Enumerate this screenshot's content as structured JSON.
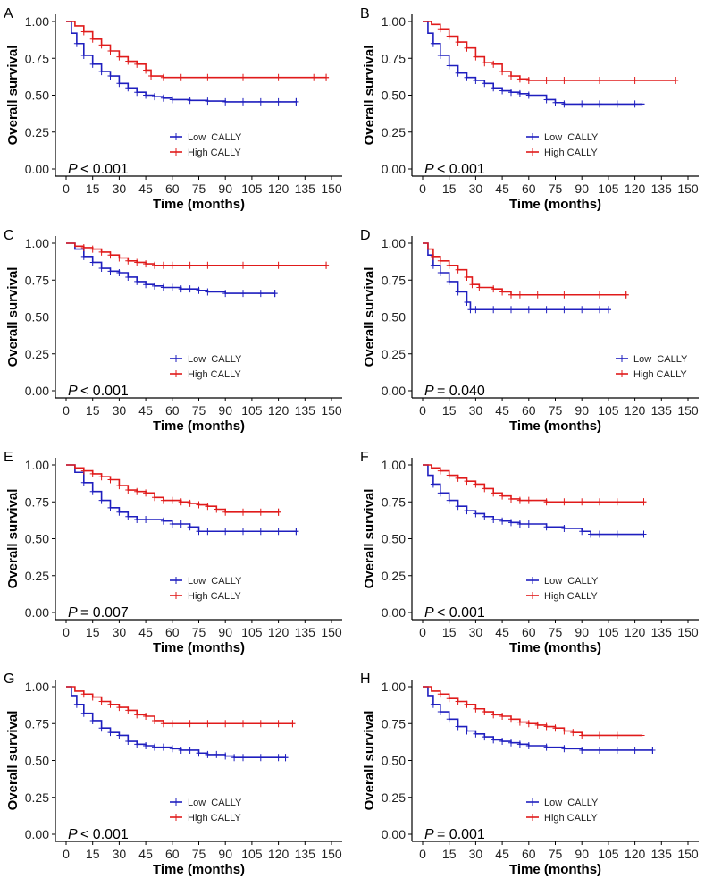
{
  "colors": {
    "low": "#1f1fbf",
    "high": "#e01b1b",
    "axis": "#000000"
  },
  "chart_data": [
    {
      "type": "line",
      "panel_label": "A",
      "xlabel": "Time (months)",
      "ylabel": "Overall survival",
      "xlim": [
        0,
        150
      ],
      "ylim": [
        0,
        1
      ],
      "xticks": [
        "0",
        "15",
        "30",
        "45",
        "60",
        "75",
        "90",
        "105",
        "120",
        "135",
        "150"
      ],
      "yticks": [
        "0.00",
        "0.25",
        "0.50",
        "0.75",
        "1.00"
      ],
      "p_label": "P",
      "p_value": "< 0.001",
      "legend_position": "bottom-center",
      "series": [
        {
          "name": "Low  CALLY",
          "color": "#1f1fbf",
          "x": [
            0,
            3,
            6,
            10,
            15,
            20,
            25,
            30,
            35,
            40,
            45,
            50,
            55,
            60,
            70,
            80,
            90,
            100,
            110,
            120,
            130
          ],
          "y": [
            1.0,
            0.92,
            0.85,
            0.77,
            0.71,
            0.66,
            0.63,
            0.58,
            0.55,
            0.52,
            0.5,
            0.49,
            0.48,
            0.47,
            0.465,
            0.46,
            0.455,
            0.455,
            0.455,
            0.455,
            0.455
          ]
        },
        {
          "name": "High CALLY",
          "color": "#e01b1b",
          "x": [
            0,
            5,
            10,
            15,
            20,
            25,
            30,
            35,
            40,
            45,
            48,
            55,
            65,
            80,
            100,
            120,
            140,
            147
          ],
          "y": [
            1.0,
            0.97,
            0.93,
            0.88,
            0.84,
            0.8,
            0.76,
            0.73,
            0.71,
            0.67,
            0.63,
            0.62,
            0.62,
            0.62,
            0.62,
            0.62,
            0.62,
            0.62
          ]
        }
      ]
    },
    {
      "type": "line",
      "panel_label": "B",
      "xlabel": "Time (months)",
      "ylabel": "Overall survival",
      "xlim": [
        0,
        150
      ],
      "ylim": [
        0,
        1
      ],
      "xticks": [
        "0",
        "15",
        "30",
        "45",
        "60",
        "75",
        "90",
        "105",
        "120",
        "135",
        "150"
      ],
      "yticks": [
        "0.00",
        "0.25",
        "0.50",
        "0.75",
        "1.00"
      ],
      "p_label": "P",
      "p_value": "< 0.001",
      "legend_position": "bottom-center",
      "series": [
        {
          "name": "Low  CALLY",
          "color": "#1f1fbf",
          "x": [
            0,
            3,
            6,
            10,
            15,
            20,
            25,
            30,
            35,
            40,
            45,
            50,
            55,
            60,
            70,
            75,
            80,
            90,
            100,
            110,
            120,
            124
          ],
          "y": [
            1.0,
            0.92,
            0.85,
            0.77,
            0.7,
            0.65,
            0.62,
            0.6,
            0.58,
            0.55,
            0.53,
            0.52,
            0.51,
            0.5,
            0.47,
            0.45,
            0.44,
            0.44,
            0.44,
            0.44,
            0.44,
            0.44
          ]
        },
        {
          "name": "High CALLY",
          "color": "#e01b1b",
          "x": [
            0,
            5,
            10,
            15,
            20,
            25,
            30,
            35,
            40,
            45,
            50,
            55,
            60,
            70,
            80,
            100,
            120,
            143
          ],
          "y": [
            1.0,
            0.98,
            0.95,
            0.9,
            0.86,
            0.82,
            0.76,
            0.72,
            0.71,
            0.66,
            0.63,
            0.61,
            0.6,
            0.6,
            0.6,
            0.6,
            0.6,
            0.6
          ]
        }
      ]
    },
    {
      "type": "line",
      "panel_label": "C",
      "xlabel": "Time (months)",
      "ylabel": "Overall survival",
      "xlim": [
        0,
        150
      ],
      "ylim": [
        0,
        1
      ],
      "xticks": [
        "0",
        "15",
        "30",
        "45",
        "60",
        "75",
        "90",
        "105",
        "120",
        "135",
        "150"
      ],
      "yticks": [
        "0.00",
        "0.25",
        "0.50",
        "0.75",
        "1.00"
      ],
      "p_label": "P",
      "p_value": "< 0.001",
      "legend_position": "bottom-center",
      "series": [
        {
          "name": "Low  CALLY",
          "color": "#1f1fbf",
          "x": [
            0,
            5,
            10,
            15,
            20,
            25,
            30,
            35,
            40,
            45,
            50,
            55,
            60,
            65,
            70,
            75,
            80,
            90,
            100,
            110,
            118
          ],
          "y": [
            1.0,
            0.96,
            0.91,
            0.87,
            0.83,
            0.81,
            0.8,
            0.77,
            0.74,
            0.72,
            0.71,
            0.7,
            0.7,
            0.69,
            0.69,
            0.68,
            0.67,
            0.66,
            0.66,
            0.66,
            0.66
          ]
        },
        {
          "name": "High CALLY",
          "color": "#e01b1b",
          "x": [
            0,
            5,
            10,
            15,
            20,
            25,
            30,
            35,
            40,
            45,
            50,
            55,
            60,
            70,
            80,
            100,
            120,
            147
          ],
          "y": [
            1.0,
            0.98,
            0.97,
            0.96,
            0.94,
            0.92,
            0.9,
            0.88,
            0.87,
            0.86,
            0.85,
            0.85,
            0.85,
            0.85,
            0.85,
            0.85,
            0.85,
            0.85
          ]
        }
      ]
    },
    {
      "type": "line",
      "panel_label": "D",
      "xlabel": "Time (months)",
      "ylabel": "Overall survival",
      "xlim": [
        0,
        150
      ],
      "ylim": [
        0,
        1
      ],
      "xticks": [
        "0",
        "15",
        "30",
        "45",
        "60",
        "75",
        "90",
        "105",
        "120",
        "135",
        "150"
      ],
      "yticks": [
        "0.00",
        "0.25",
        "0.50",
        "0.75",
        "1.00"
      ],
      "p_label": "P",
      "p_value": "= 0.040",
      "legend_position": "bottom-right",
      "series": [
        {
          "name": "Low  CALLY",
          "color": "#1f1fbf",
          "x": [
            0,
            3,
            6,
            10,
            15,
            20,
            25,
            27,
            30,
            40,
            50,
            60,
            70,
            80,
            90,
            100,
            105
          ],
          "y": [
            1.0,
            0.92,
            0.85,
            0.8,
            0.74,
            0.67,
            0.6,
            0.55,
            0.55,
            0.55,
            0.55,
            0.55,
            0.55,
            0.55,
            0.55,
            0.55,
            0.55
          ]
        },
        {
          "name": "High CALLY",
          "color": "#e01b1b",
          "x": [
            0,
            3,
            6,
            10,
            15,
            20,
            25,
            28,
            32,
            40,
            45,
            50,
            55,
            65,
            80,
            100,
            115
          ],
          "y": [
            1.0,
            0.96,
            0.91,
            0.88,
            0.85,
            0.82,
            0.77,
            0.72,
            0.7,
            0.69,
            0.67,
            0.65,
            0.65,
            0.65,
            0.65,
            0.65,
            0.65
          ]
        }
      ]
    },
    {
      "type": "line",
      "panel_label": "E",
      "xlabel": "Time (months)",
      "ylabel": "Overall survival",
      "xlim": [
        0,
        150
      ],
      "ylim": [
        0,
        1
      ],
      "xticks": [
        "0",
        "15",
        "30",
        "45",
        "60",
        "75",
        "90",
        "105",
        "120",
        "135",
        "150"
      ],
      "yticks": [
        "0.00",
        "0.25",
        "0.50",
        "0.75",
        "1.00"
      ],
      "p_label": "P",
      "p_value": "= 0.007",
      "legend_position": "bottom-center",
      "series": [
        {
          "name": "Low  CALLY",
          "color": "#1f1fbf",
          "x": [
            0,
            5,
            10,
            15,
            20,
            25,
            30,
            35,
            40,
            45,
            55,
            60,
            65,
            70,
            75,
            80,
            90,
            100,
            110,
            120,
            130
          ],
          "y": [
            1.0,
            0.95,
            0.88,
            0.82,
            0.76,
            0.71,
            0.68,
            0.65,
            0.63,
            0.63,
            0.62,
            0.6,
            0.6,
            0.58,
            0.55,
            0.55,
            0.55,
            0.55,
            0.55,
            0.55,
            0.55
          ]
        },
        {
          "name": "High CALLY",
          "color": "#e01b1b",
          "x": [
            0,
            5,
            10,
            15,
            20,
            25,
            30,
            35,
            40,
            45,
            50,
            55,
            60,
            65,
            70,
            75,
            80,
            85,
            90,
            100,
            110,
            120
          ],
          "y": [
            1.0,
            0.98,
            0.96,
            0.94,
            0.92,
            0.9,
            0.86,
            0.83,
            0.82,
            0.81,
            0.78,
            0.76,
            0.76,
            0.75,
            0.74,
            0.73,
            0.72,
            0.7,
            0.68,
            0.68,
            0.68,
            0.68
          ]
        }
      ]
    },
    {
      "type": "line",
      "panel_label": "F",
      "xlabel": "Time (months)",
      "ylabel": "Overall survival",
      "xlim": [
        0,
        150
      ],
      "ylim": [
        0,
        1
      ],
      "xticks": [
        "0",
        "15",
        "30",
        "45",
        "60",
        "75",
        "90",
        "105",
        "120",
        "135",
        "150"
      ],
      "yticks": [
        "0.00",
        "0.25",
        "0.50",
        "0.75",
        "1.00"
      ],
      "p_label": "P",
      "p_value": "< 0.001",
      "legend_position": "bottom-center",
      "series": [
        {
          "name": "Low  CALLY",
          "color": "#1f1fbf",
          "x": [
            0,
            3,
            6,
            10,
            15,
            20,
            25,
            30,
            35,
            40,
            45,
            50,
            55,
            60,
            70,
            80,
            90,
            95,
            100,
            110,
            125
          ],
          "y": [
            1.0,
            0.93,
            0.87,
            0.81,
            0.76,
            0.72,
            0.69,
            0.67,
            0.65,
            0.63,
            0.62,
            0.61,
            0.6,
            0.6,
            0.58,
            0.57,
            0.55,
            0.53,
            0.53,
            0.53,
            0.53
          ]
        },
        {
          "name": "High CALLY",
          "color": "#e01b1b",
          "x": [
            0,
            5,
            10,
            15,
            20,
            25,
            30,
            35,
            40,
            45,
            50,
            55,
            60,
            70,
            80,
            90,
            100,
            110,
            125
          ],
          "y": [
            1.0,
            0.98,
            0.96,
            0.93,
            0.91,
            0.89,
            0.87,
            0.84,
            0.81,
            0.79,
            0.77,
            0.76,
            0.76,
            0.75,
            0.75,
            0.75,
            0.75,
            0.75,
            0.75
          ]
        }
      ]
    },
    {
      "type": "line",
      "panel_label": "G",
      "xlabel": "Time (months)",
      "ylabel": "Overall survival",
      "xlim": [
        0,
        150
      ],
      "ylim": [
        0,
        1
      ],
      "xticks": [
        "0",
        "15",
        "30",
        "45",
        "60",
        "75",
        "90",
        "105",
        "120",
        "135",
        "150"
      ],
      "yticks": [
        "0.00",
        "0.25",
        "0.50",
        "0.75",
        "1.00"
      ],
      "p_label": "P",
      "p_value": "< 0.001",
      "legend_position": "bottom-center",
      "series": [
        {
          "name": "Low  CALLY",
          "color": "#1f1fbf",
          "x": [
            0,
            3,
            6,
            10,
            15,
            20,
            25,
            30,
            35,
            40,
            45,
            50,
            55,
            60,
            65,
            70,
            75,
            80,
            85,
            90,
            95,
            100,
            110,
            120,
            124
          ],
          "y": [
            1.0,
            0.94,
            0.88,
            0.82,
            0.77,
            0.72,
            0.69,
            0.67,
            0.63,
            0.61,
            0.6,
            0.59,
            0.59,
            0.58,
            0.57,
            0.57,
            0.55,
            0.54,
            0.54,
            0.53,
            0.52,
            0.52,
            0.52,
            0.52,
            0.52
          ]
        },
        {
          "name": "High CALLY",
          "color": "#e01b1b",
          "x": [
            0,
            5,
            10,
            15,
            20,
            25,
            30,
            35,
            40,
            45,
            50,
            55,
            60,
            70,
            80,
            90,
            100,
            110,
            120,
            128
          ],
          "y": [
            1.0,
            0.97,
            0.95,
            0.93,
            0.9,
            0.88,
            0.86,
            0.84,
            0.81,
            0.8,
            0.77,
            0.75,
            0.75,
            0.75,
            0.75,
            0.75,
            0.75,
            0.75,
            0.75,
            0.75
          ]
        }
      ]
    },
    {
      "type": "line",
      "panel_label": "H",
      "xlabel": "Time (months)",
      "ylabel": "Overall survival",
      "xlim": [
        0,
        150
      ],
      "ylim": [
        0,
        1
      ],
      "xticks": [
        "0",
        "15",
        "30",
        "45",
        "60",
        "75",
        "90",
        "105",
        "120",
        "135",
        "150"
      ],
      "yticks": [
        "0.00",
        "0.25",
        "0.50",
        "0.75",
        "1.00"
      ],
      "p_label": "P",
      "p_value": "= 0.001",
      "legend_position": "bottom-center",
      "series": [
        {
          "name": "Low  CALLY",
          "color": "#1f1fbf",
          "x": [
            0,
            3,
            6,
            10,
            15,
            20,
            25,
            30,
            35,
            40,
            45,
            50,
            55,
            60,
            70,
            80,
            90,
            100,
            110,
            120,
            130
          ],
          "y": [
            1.0,
            0.94,
            0.88,
            0.83,
            0.78,
            0.73,
            0.7,
            0.68,
            0.66,
            0.64,
            0.63,
            0.62,
            0.61,
            0.6,
            0.59,
            0.58,
            0.57,
            0.57,
            0.57,
            0.57,
            0.57
          ]
        },
        {
          "name": "High CALLY",
          "color": "#e01b1b",
          "x": [
            0,
            5,
            10,
            15,
            20,
            25,
            30,
            35,
            40,
            45,
            50,
            55,
            60,
            65,
            70,
            75,
            80,
            85,
            90,
            100,
            110,
            124
          ],
          "y": [
            1.0,
            0.97,
            0.95,
            0.92,
            0.9,
            0.88,
            0.85,
            0.83,
            0.81,
            0.8,
            0.78,
            0.76,
            0.75,
            0.74,
            0.73,
            0.72,
            0.7,
            0.69,
            0.67,
            0.67,
            0.67,
            0.67
          ]
        }
      ]
    }
  ]
}
